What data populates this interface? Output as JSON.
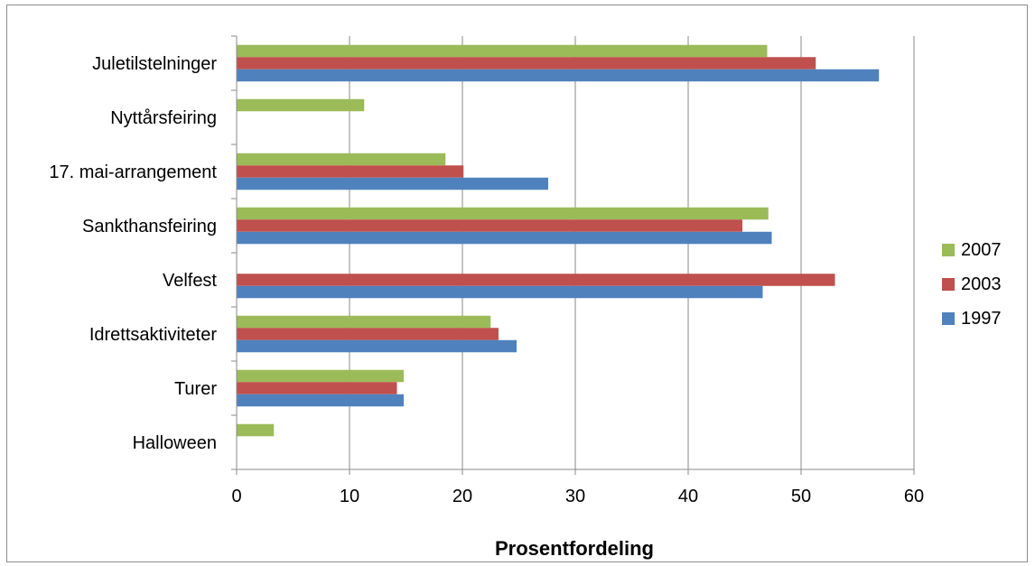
{
  "chart_data": {
    "type": "bar",
    "orientation": "horizontal",
    "title": "",
    "xlabel": "Prosentfordeling",
    "ylabel": "",
    "xlim": [
      0,
      60
    ],
    "xticks": [
      0,
      10,
      20,
      30,
      40,
      50,
      60
    ],
    "grid": "vertical",
    "legend_position": "right",
    "categories": [
      "Juletilstelninger",
      "Nyttårsfeiring",
      "17. mai-arrangement",
      "Sankthansfeiring",
      "Velfest",
      "Idrettsaktiviteter",
      "Turer",
      "Halloween"
    ],
    "series": [
      {
        "name": "2007",
        "color": "#9bbb59",
        "values": [
          47,
          11.3,
          18.5,
          47.1,
          null,
          22.5,
          14.8,
          3.3
        ]
      },
      {
        "name": "2003",
        "color": "#c0504d",
        "values": [
          51.3,
          null,
          20.1,
          44.8,
          53,
          23.2,
          14.2,
          null
        ]
      },
      {
        "name": "1997",
        "color": "#4f81bd",
        "values": [
          56.9,
          null,
          27.6,
          47.4,
          46.6,
          24.8,
          14.8,
          null
        ]
      }
    ]
  }
}
